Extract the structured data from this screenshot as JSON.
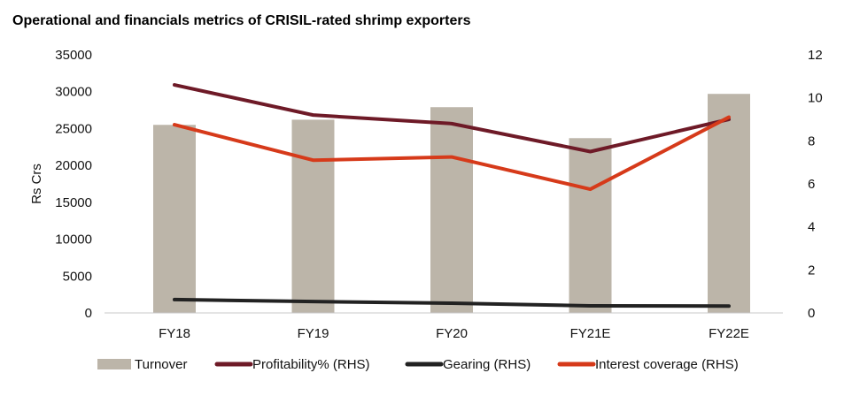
{
  "chart_data": {
    "type": "bar+line",
    "title": "Operational and financials metrics of CRISIL-rated shrimp exporters",
    "ylabel": "Rs Crs",
    "ylim": [
      0,
      35000
    ],
    "y_ticks": [
      "0",
      "5000",
      "10000",
      "15000",
      "20000",
      "25000",
      "30000",
      "35000"
    ],
    "y2lim": [
      0,
      12
    ],
    "y2_ticks": [
      "0",
      "2",
      "4",
      "6",
      "8",
      "10",
      "12"
    ],
    "categories": [
      "FY18",
      "FY19",
      "FY20",
      "FY21E",
      "FY22E"
    ],
    "series": [
      {
        "name": "Turnover",
        "type": "bar",
        "axis": "left",
        "color": "#bcb5a9",
        "values": [
          25500,
          26200,
          27900,
          23700,
          29700
        ]
      },
      {
        "name": "Profitability% (RHS)",
        "type": "line",
        "axis": "right",
        "color": "#6e1a27",
        "values": [
          10.6,
          9.2,
          8.8,
          7.5,
          9.0
        ]
      },
      {
        "name": "Gearing (RHS)",
        "type": "line",
        "axis": "right",
        "color": "#222222",
        "values": [
          0.62,
          0.53,
          0.45,
          0.33,
          0.32
        ]
      },
      {
        "name": "Interest coverage (RHS)",
        "type": "line",
        "axis": "right",
        "color": "#d63a1a",
        "values": [
          8.75,
          7.1,
          7.25,
          5.75,
          9.1
        ]
      }
    ],
    "legend": "bottom",
    "grid": false
  }
}
